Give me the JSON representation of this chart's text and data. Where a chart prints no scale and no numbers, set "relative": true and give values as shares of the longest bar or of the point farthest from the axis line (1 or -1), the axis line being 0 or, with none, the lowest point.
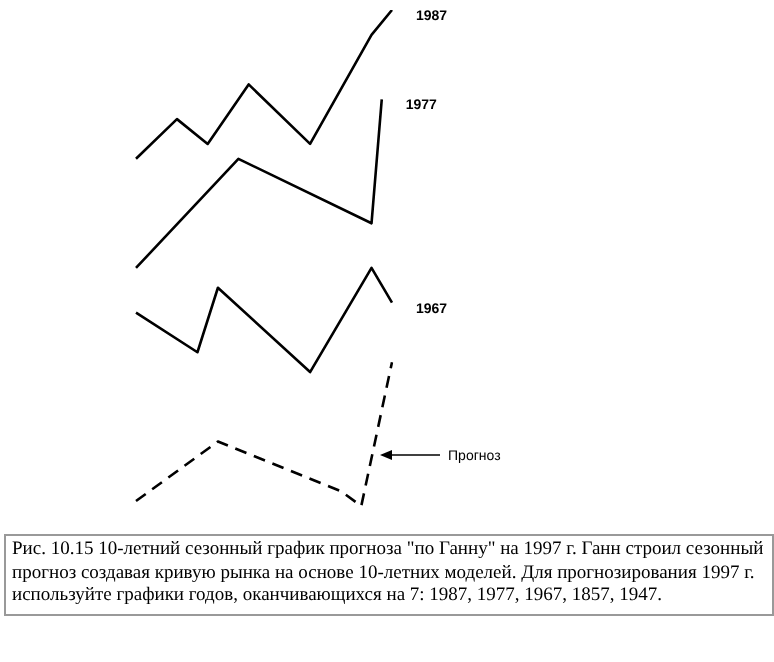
{
  "chart_data": {
    "type": "line",
    "relative": true,
    "categories": [
      null,
      null,
      null,
      null,
      null,
      null,
      null,
      null,
      null,
      null,
      null,
      null,
      null,
      null,
      null,
      null,
      null,
      null,
      null,
      null,
      null,
      null,
      null,
      null,
      null,
      null
    ],
    "series": [
      {
        "name": "1987",
        "color": "#000000",
        "line_style": "solid",
        "values": [
          0.7,
          null,
          null,
          null,
          0.78,
          null,
          null,
          0.73,
          null,
          null,
          null,
          0.85,
          null,
          null,
          null,
          null,
          null,
          0.73,
          null,
          null,
          null,
          null,
          null,
          0.95,
          null,
          1
        ]
      },
      {
        "name": "1977",
        "color": "#000000",
        "line_style": "solid",
        "values": [
          0.48,
          null,
          null,
          null,
          null,
          null,
          null,
          null,
          null,
          null,
          0.7,
          null,
          null,
          null,
          null,
          null,
          null,
          null,
          null,
          null,
          null,
          null,
          null,
          0.57,
          0.82,
          null
        ]
      },
      {
        "name": "1967",
        "color": "#000000",
        "line_style": "solid",
        "values": [
          0.39,
          null,
          null,
          null,
          null,
          null,
          0.31,
          null,
          0.44,
          null,
          null,
          null,
          null,
          null,
          null,
          null,
          null,
          0.27,
          null,
          null,
          null,
          null,
          null,
          0.48,
          null,
          0.41
        ]
      },
      {
        "color": "#000000",
        "line_style": "dashed",
        "values": [
          0.01,
          null,
          null,
          null,
          null,
          null,
          null,
          null,
          0.13,
          null,
          null,
          null,
          null,
          null,
          null,
          null,
          null,
          null,
          null,
          null,
          0.03,
          null,
          0,
          null,
          null,
          0.29
        ]
      }
    ],
    "annotations": [
      "Прогноз",
      "Рис. 10.15    10-летний сезонный график прогноза \"по Ганну\" на 1997 г. Ганн строил сезонный прогноз создавая кривую рынка на основе 10-летних моделей. Для прогнозирования 1997 г. используйте графики годов, оканчивающихся на 7: 1987, 1977, 1967, 1857, 1947."
    ]
  }
}
